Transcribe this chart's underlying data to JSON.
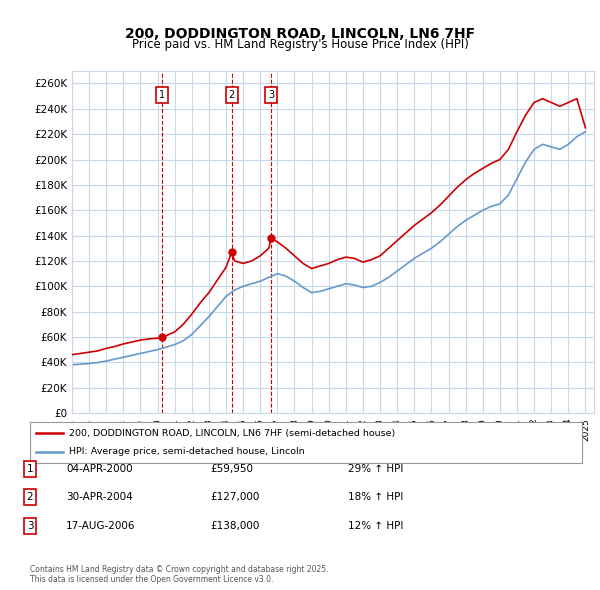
{
  "title": "200, DODDINGTON ROAD, LINCOLN, LN6 7HF",
  "subtitle": "Price paid vs. HM Land Registry's House Price Index (HPI)",
  "background_color": "#ffffff",
  "plot_bg_color": "#ffffff",
  "grid_color": "#c8d8e8",
  "ylim": [
    0,
    270000
  ],
  "yticks": [
    0,
    20000,
    40000,
    60000,
    80000,
    100000,
    120000,
    140000,
    160000,
    180000,
    200000,
    220000,
    240000,
    260000
  ],
  "xlim_start": 1995.0,
  "xlim_end": 2025.5,
  "sale_dates": [
    2000.25,
    2004.33,
    2006.63
  ],
  "sale_prices": [
    59950,
    127000,
    138000
  ],
  "sale_labels": [
    "1",
    "2",
    "3"
  ],
  "red_line_color": "#cc0000",
  "blue_line_color": "#6699cc",
  "marker_box_color": "#cc0000",
  "dashed_line_color": "#cc0000",
  "legend_label_red": "200, DODDINGTON ROAD, LINCOLN, LN6 7HF (semi-detached house)",
  "legend_label_blue": "HPI: Average price, semi-detached house, Lincoln",
  "table_entries": [
    {
      "num": "1",
      "date": "04-APR-2000",
      "price": "£59,950",
      "change": "29% ↑ HPI"
    },
    {
      "num": "2",
      "date": "30-APR-2004",
      "price": "£127,000",
      "change": "18% ↑ HPI"
    },
    {
      "num": "3",
      "date": "17-AUG-2006",
      "price": "£138,000",
      "change": "12% ↑ HPI"
    }
  ],
  "footnote": "Contains HM Land Registry data © Crown copyright and database right 2025.\nThis data is licensed under the Open Government Licence v3.0.",
  "hpi_years": [
    1995,
    1995.5,
    1996,
    1996.5,
    1997,
    1997.5,
    1998,
    1998.5,
    1999,
    1999.5,
    2000,
    2000.5,
    2001,
    2001.5,
    2002,
    2002.5,
    2003,
    2003.5,
    2004,
    2004.5,
    2005,
    2005.5,
    2006,
    2006.5,
    2007,
    2007.5,
    2008,
    2008.5,
    2009,
    2009.5,
    2010,
    2010.5,
    2011,
    2011.5,
    2012,
    2012.5,
    2013,
    2013.5,
    2014,
    2014.5,
    2015,
    2015.5,
    2016,
    2016.5,
    2017,
    2017.5,
    2018,
    2018.5,
    2019,
    2019.5,
    2020,
    2020.5,
    2021,
    2021.5,
    2022,
    2022.5,
    2023,
    2023.5,
    2024,
    2024.5,
    2025
  ],
  "hpi_values": [
    38000,
    38500,
    39000,
    39800,
    41000,
    42500,
    44000,
    45500,
    47000,
    48500,
    50000,
    52000,
    54000,
    57000,
    62000,
    69000,
    76000,
    84000,
    92000,
    97000,
    100000,
    102000,
    104000,
    107000,
    110000,
    108000,
    104000,
    99000,
    95000,
    96000,
    98000,
    100000,
    102000,
    101000,
    99000,
    100000,
    103000,
    107000,
    112000,
    117000,
    122000,
    126000,
    130000,
    135000,
    141000,
    147000,
    152000,
    156000,
    160000,
    163000,
    165000,
    172000,
    185000,
    198000,
    208000,
    212000,
    210000,
    208000,
    212000,
    218000,
    222000
  ],
  "property_years": [
    1995.0,
    1995.5,
    1996.0,
    1996.5,
    1997.0,
    1997.5,
    1998.0,
    1998.5,
    1999.0,
    1999.5,
    2000.0,
    2000.25,
    2000.5,
    2001.0,
    2001.5,
    2002.0,
    2002.5,
    2003.0,
    2003.5,
    2004.0,
    2004.33,
    2004.5,
    2005.0,
    2005.5,
    2006.0,
    2006.5,
    2006.63,
    2007.0,
    2007.5,
    2008.0,
    2008.5,
    2009.0,
    2009.5,
    2010.0,
    2010.5,
    2011.0,
    2011.5,
    2012.0,
    2012.5,
    2013.0,
    2013.5,
    2014.0,
    2014.5,
    2015.0,
    2015.5,
    2016.0,
    2016.5,
    2017.0,
    2017.5,
    2018.0,
    2018.5,
    2019.0,
    2019.5,
    2020.0,
    2020.5,
    2021.0,
    2021.5,
    2022.0,
    2022.5,
    2023.0,
    2023.5,
    2024.0,
    2024.5,
    2025.0
  ],
  "property_values": [
    46000,
    47000,
    48000,
    49000,
    51000,
    52500,
    54500,
    56000,
    57500,
    58500,
    59000,
    59950,
    61000,
    64000,
    70000,
    78000,
    87000,
    95000,
    105000,
    115000,
    127000,
    120000,
    118000,
    120000,
    124000,
    130000,
    138000,
    135000,
    130000,
    124000,
    118000,
    114000,
    116000,
    118000,
    121000,
    123000,
    122000,
    119000,
    121000,
    124000,
    130000,
    136000,
    142000,
    148000,
    153000,
    158000,
    164000,
    171000,
    178000,
    184000,
    189000,
    193000,
    197000,
    200000,
    208000,
    222000,
    235000,
    245000,
    248000,
    245000,
    242000,
    245000,
    248000,
    225000
  ]
}
